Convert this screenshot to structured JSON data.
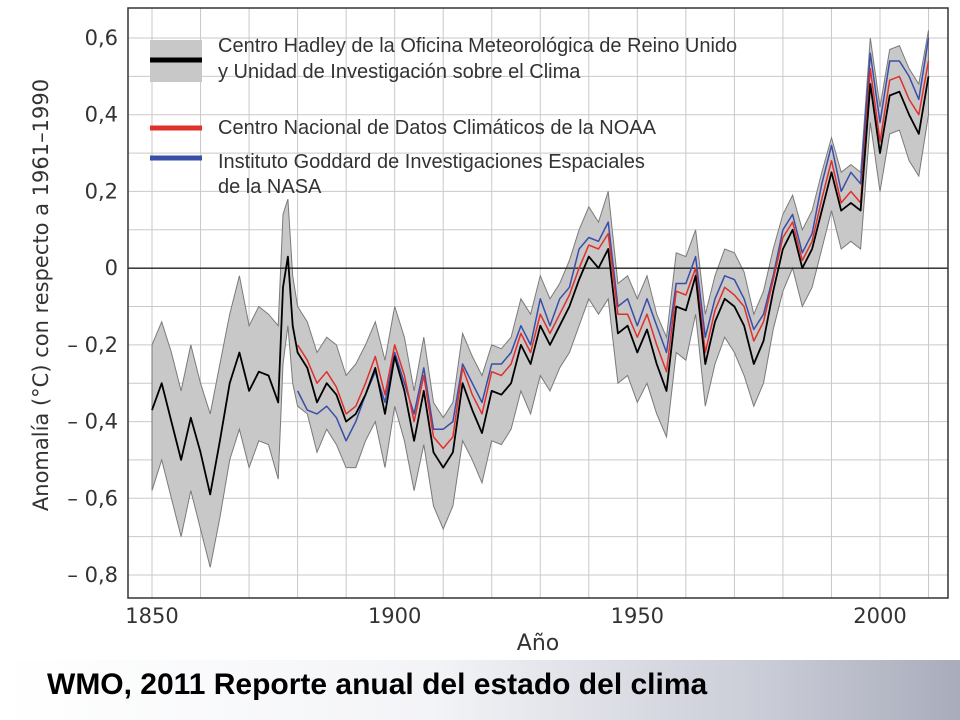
{
  "footer": {
    "caption": "WMO, 2011 Reporte anual del estado del clima"
  },
  "chart_data": {
    "type": "line",
    "title": "",
    "xlabel": "Año",
    "ylabel": "Anomalía (°C) con respecto a 1961–1990",
    "xlim": [
      1850,
      2011
    ],
    "ylim": [
      -0.85,
      0.65
    ],
    "x_ticks": [
      1850,
      1900,
      1950,
      2000
    ],
    "x_tick_labels": [
      "1850",
      "1900",
      "1950",
      "2000"
    ],
    "y_ticks": [
      0.6,
      0.4,
      0.2,
      0,
      -0.2,
      -0.4,
      -0.6,
      -0.8
    ],
    "y_tick_labels": [
      "0,6",
      "0,4",
      "0,2",
      "0",
      "– 0,2",
      "– 0,4",
      "– 0,6",
      "– 0,8"
    ],
    "grid": true,
    "legend_position": "top-left",
    "legend": [
      {
        "series": "hadley",
        "label_lines": [
          "Centro Hadley de la Oficina Meteorológica de Reino Unido",
          "y Unidad de Investigación sobre el Clima"
        ],
        "color": "#000000"
      },
      {
        "series": "noaa",
        "label_lines": [
          "Centro Nacional de Datos Climáticos de la NOAA"
        ],
        "color": "#e0302c"
      },
      {
        "series": "nasa",
        "label_lines": [
          "Instituto Goddard de Investigaciones Espaciales",
          "de la NASA"
        ],
        "color": "#3a4ea8"
      }
    ],
    "band_color": "#c8c8c8",
    "series": [
      {
        "key": "hadley",
        "color": "#000000",
        "x": [
          1850,
          1852,
          1854,
          1856,
          1858,
          1860,
          1862,
          1864,
          1866,
          1868,
          1870,
          1872,
          1874,
          1876,
          1877,
          1878,
          1879,
          1880,
          1882,
          1884,
          1886,
          1888,
          1890,
          1892,
          1894,
          1896,
          1898,
          1900,
          1902,
          1904,
          1906,
          1908,
          1910,
          1912,
          1914,
          1916,
          1918,
          1920,
          1922,
          1924,
          1926,
          1928,
          1930,
          1932,
          1934,
          1936,
          1938,
          1940,
          1942,
          1944,
          1946,
          1948,
          1950,
          1952,
          1954,
          1956,
          1958,
          1960,
          1962,
          1964,
          1966,
          1968,
          1970,
          1972,
          1974,
          1976,
          1978,
          1980,
          1982,
          1984,
          1986,
          1988,
          1990,
          1992,
          1994,
          1996,
          1998,
          2000,
          2002,
          2004,
          2006,
          2008,
          2010
        ],
        "y": [
          -0.37,
          -0.3,
          -0.4,
          -0.5,
          -0.39,
          -0.48,
          -0.59,
          -0.45,
          -0.3,
          -0.22,
          -0.32,
          -0.27,
          -0.28,
          -0.35,
          -0.05,
          0.03,
          -0.15,
          -0.22,
          -0.26,
          -0.35,
          -0.3,
          -0.33,
          -0.4,
          -0.38,
          -0.33,
          -0.26,
          -0.38,
          -0.23,
          -0.32,
          -0.45,
          -0.32,
          -0.48,
          -0.52,
          -0.48,
          -0.3,
          -0.37,
          -0.43,
          -0.32,
          -0.33,
          -0.3,
          -0.2,
          -0.25,
          -0.15,
          -0.2,
          -0.15,
          -0.1,
          -0.03,
          0.03,
          0.0,
          0.05,
          -0.17,
          -0.15,
          -0.22,
          -0.16,
          -0.25,
          -0.32,
          -0.1,
          -0.11,
          -0.02,
          -0.25,
          -0.14,
          -0.08,
          -0.1,
          -0.15,
          -0.25,
          -0.19,
          -0.06,
          0.05,
          0.1,
          0.0,
          0.05,
          0.15,
          0.25,
          0.15,
          0.17,
          0.15,
          0.48,
          0.3,
          0.45,
          0.46,
          0.4,
          0.35,
          0.5
        ]
      },
      {
        "key": "noaa",
        "color": "#e0302c",
        "x": [
          1880,
          1882,
          1884,
          1886,
          1888,
          1890,
          1892,
          1894,
          1896,
          1898,
          1900,
          1902,
          1904,
          1906,
          1908,
          1910,
          1912,
          1914,
          1916,
          1918,
          1920,
          1922,
          1924,
          1926,
          1928,
          1930,
          1932,
          1934,
          1936,
          1938,
          1940,
          1942,
          1944,
          1946,
          1948,
          1950,
          1952,
          1954,
          1956,
          1958,
          1960,
          1962,
          1964,
          1966,
          1968,
          1970,
          1972,
          1974,
          1976,
          1978,
          1980,
          1982,
          1984,
          1986,
          1988,
          1990,
          1992,
          1994,
          1996,
          1998,
          2000,
          2002,
          2004,
          2006,
          2008,
          2010
        ],
        "y": [
          -0.2,
          -0.24,
          -0.3,
          -0.27,
          -0.31,
          -0.38,
          -0.36,
          -0.3,
          -0.23,
          -0.33,
          -0.2,
          -0.28,
          -0.4,
          -0.28,
          -0.44,
          -0.47,
          -0.44,
          -0.26,
          -0.33,
          -0.38,
          -0.27,
          -0.28,
          -0.25,
          -0.17,
          -0.22,
          -0.12,
          -0.17,
          -0.12,
          -0.07,
          0.0,
          0.06,
          0.05,
          0.09,
          -0.12,
          -0.12,
          -0.18,
          -0.12,
          -0.2,
          -0.27,
          -0.06,
          -0.07,
          0.0,
          -0.22,
          -0.11,
          -0.05,
          -0.07,
          -0.1,
          -0.19,
          -0.14,
          -0.03,
          0.08,
          0.12,
          0.02,
          0.07,
          0.18,
          0.28,
          0.17,
          0.2,
          0.17,
          0.52,
          0.33,
          0.49,
          0.5,
          0.44,
          0.4,
          0.54
        ]
      },
      {
        "key": "nasa",
        "color": "#3a4ea8",
        "x": [
          1880,
          1882,
          1884,
          1886,
          1888,
          1890,
          1892,
          1894,
          1896,
          1898,
          1900,
          1902,
          1904,
          1906,
          1908,
          1910,
          1912,
          1914,
          1916,
          1918,
          1920,
          1922,
          1924,
          1926,
          1928,
          1930,
          1932,
          1934,
          1936,
          1938,
          1940,
          1942,
          1944,
          1946,
          1948,
          1950,
          1952,
          1954,
          1956,
          1958,
          1960,
          1962,
          1964,
          1966,
          1968,
          1970,
          1972,
          1974,
          1976,
          1978,
          1980,
          1982,
          1984,
          1986,
          1988,
          1990,
          1992,
          1994,
          1996,
          1998,
          2000,
          2002,
          2004,
          2006,
          2008,
          2010
        ],
        "y": [
          -0.32,
          -0.37,
          -0.38,
          -0.36,
          -0.39,
          -0.45,
          -0.4,
          -0.33,
          -0.27,
          -0.35,
          -0.22,
          -0.3,
          -0.38,
          -0.26,
          -0.42,
          -0.42,
          -0.4,
          -0.25,
          -0.3,
          -0.35,
          -0.25,
          -0.25,
          -0.22,
          -0.15,
          -0.2,
          -0.08,
          -0.15,
          -0.08,
          -0.05,
          0.05,
          0.08,
          0.07,
          0.12,
          -0.1,
          -0.08,
          -0.15,
          -0.08,
          -0.15,
          -0.22,
          -0.04,
          -0.04,
          0.03,
          -0.18,
          -0.08,
          -0.02,
          -0.03,
          -0.08,
          -0.16,
          -0.12,
          -0.02,
          0.1,
          0.14,
          0.04,
          0.09,
          0.22,
          0.32,
          0.2,
          0.25,
          0.22,
          0.56,
          0.38,
          0.54,
          0.54,
          0.5,
          0.44,
          0.6
        ]
      }
    ],
    "uncertainty_band": {
      "x": [
        1850,
        1852,
        1854,
        1856,
        1858,
        1860,
        1862,
        1864,
        1866,
        1868,
        1870,
        1872,
        1874,
        1876,
        1877,
        1878,
        1879,
        1880,
        1882,
        1884,
        1886,
        1888,
        1890,
        1892,
        1894,
        1896,
        1898,
        1900,
        1902,
        1904,
        1906,
        1908,
        1910,
        1912,
        1914,
        1916,
        1918,
        1920,
        1922,
        1924,
        1926,
        1928,
        1930,
        1932,
        1934,
        1936,
        1938,
        1940,
        1942,
        1944,
        1946,
        1948,
        1950,
        1952,
        1954,
        1956,
        1958,
        1960,
        1962,
        1964,
        1966,
        1968,
        1970,
        1972,
        1974,
        1976,
        1978,
        1980,
        1982,
        1984,
        1986,
        1988,
        1990,
        1992,
        1994,
        1996,
        1998,
        2000,
        2002,
        2004,
        2006,
        2008,
        2010
      ],
      "upper": [
        -0.2,
        -0.14,
        -0.22,
        -0.32,
        -0.2,
        -0.3,
        -0.38,
        -0.25,
        -0.12,
        -0.02,
        -0.15,
        -0.1,
        -0.12,
        -0.15,
        0.14,
        0.18,
        -0.02,
        -0.1,
        -0.14,
        -0.22,
        -0.18,
        -0.2,
        -0.28,
        -0.25,
        -0.2,
        -0.14,
        -0.24,
        -0.1,
        -0.18,
        -0.32,
        -0.18,
        -0.35,
        -0.39,
        -0.35,
        -0.17,
        -0.23,
        -0.28,
        -0.2,
        -0.21,
        -0.18,
        -0.08,
        -0.12,
        -0.02,
        -0.08,
        -0.04,
        0.02,
        0.1,
        0.16,
        0.12,
        0.2,
        -0.04,
        -0.02,
        -0.08,
        -0.02,
        -0.12,
        -0.18,
        0.04,
        0.03,
        0.1,
        -0.12,
        -0.02,
        0.05,
        0.04,
        -0.01,
        -0.12,
        -0.06,
        0.05,
        0.14,
        0.19,
        0.1,
        0.15,
        0.25,
        0.34,
        0.25,
        0.27,
        0.25,
        0.6,
        0.42,
        0.57,
        0.58,
        0.52,
        0.48,
        0.62
      ],
      "lower": [
        -0.58,
        -0.5,
        -0.6,
        -0.7,
        -0.58,
        -0.68,
        -0.78,
        -0.65,
        -0.5,
        -0.42,
        -0.52,
        -0.45,
        -0.46,
        -0.55,
        -0.25,
        -0.15,
        -0.3,
        -0.36,
        -0.38,
        -0.48,
        -0.42,
        -0.46,
        -0.52,
        -0.52,
        -0.45,
        -0.4,
        -0.52,
        -0.36,
        -0.45,
        -0.58,
        -0.46,
        -0.62,
        -0.68,
        -0.62,
        -0.45,
        -0.5,
        -0.56,
        -0.45,
        -0.46,
        -0.42,
        -0.32,
        -0.38,
        -0.28,
        -0.32,
        -0.26,
        -0.22,
        -0.15,
        -0.08,
        -0.12,
        -0.08,
        -0.3,
        -0.28,
        -0.35,
        -0.3,
        -0.38,
        -0.44,
        -0.22,
        -0.24,
        -0.12,
        -0.36,
        -0.25,
        -0.18,
        -0.22,
        -0.28,
        -0.36,
        -0.3,
        -0.16,
        -0.06,
        0.0,
        -0.1,
        -0.05,
        0.05,
        0.15,
        0.05,
        0.07,
        0.05,
        0.38,
        0.2,
        0.35,
        0.36,
        0.28,
        0.24,
        0.4
      ]
    }
  }
}
